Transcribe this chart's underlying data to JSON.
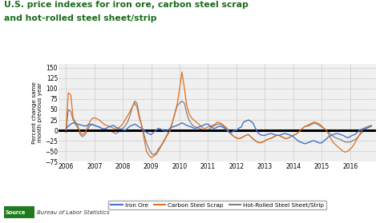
{
  "title_line1": "U.S. price indexes for iron ore, carbon steel scrap",
  "title_line2": "and hot-rolled steel sheet/strip",
  "title_color": "#1a6b1a",
  "ylabel": "Percent change same\nmonth previous year",
  "ylim": [
    -75,
    160
  ],
  "yticks": [
    -75,
    -50,
    -25,
    0,
    25,
    50,
    75,
    100,
    125,
    150
  ],
  "source_label": "Bureau of Labor Statistics",
  "background_color": "#f0f0f0",
  "grid_color": "#cccccc",
  "zero_line_color": "#000000",
  "legend_labels": [
    "Iron Ore",
    "Carbon Steel Scrap",
    "Hot-Rolled Steel Sheet/Strip"
  ],
  "line_colors": [
    "#4472c4",
    "#e07020",
    "#808080"
  ],
  "iron_ore": {
    "dates": [
      2006.0,
      2006.08,
      2006.17,
      2006.25,
      2006.33,
      2006.42,
      2006.5,
      2006.58,
      2006.67,
      2006.75,
      2006.83,
      2006.92,
      2007.0,
      2007.08,
      2007.17,
      2007.25,
      2007.33,
      2007.42,
      2007.5,
      2007.58,
      2007.67,
      2007.75,
      2007.83,
      2007.92,
      2008.0,
      2008.08,
      2008.17,
      2008.25,
      2008.33,
      2008.42,
      2008.5,
      2008.58,
      2008.67,
      2008.75,
      2008.83,
      2008.92,
      2009.0,
      2009.08,
      2009.17,
      2009.25,
      2009.33,
      2009.42,
      2009.5,
      2009.58,
      2009.67,
      2009.75,
      2009.83,
      2009.92,
      2010.0,
      2010.08,
      2010.17,
      2010.25,
      2010.33,
      2010.42,
      2010.5,
      2010.58,
      2010.67,
      2010.75,
      2010.83,
      2010.92,
      2011.0,
      2011.08,
      2011.17,
      2011.25,
      2011.33,
      2011.42,
      2011.5,
      2011.58,
      2011.67,
      2011.75,
      2011.83,
      2011.92,
      2012.0,
      2012.08,
      2012.17,
      2012.25,
      2012.33,
      2012.42,
      2012.5,
      2012.58,
      2012.67,
      2012.75,
      2012.83,
      2012.92,
      2013.0,
      2013.08,
      2013.17,
      2013.25,
      2013.33,
      2013.42,
      2013.5,
      2013.58,
      2013.67,
      2013.75,
      2013.83,
      2013.92,
      2014.0,
      2014.08,
      2014.17,
      2014.25,
      2014.33,
      2014.42,
      2014.5,
      2014.58,
      2014.67,
      2014.75,
      2014.83,
      2014.92,
      2015.0,
      2015.08,
      2015.17,
      2015.25,
      2015.33,
      2015.42,
      2015.5,
      2015.58,
      2015.67,
      2015.75,
      2015.83,
      2015.92,
      2016.0,
      2016.08,
      2016.17,
      2016.25,
      2016.33,
      2016.42,
      2016.5,
      2016.58,
      2016.67,
      2016.75
    ],
    "values": [
      5,
      10,
      15,
      18,
      17,
      15,
      13,
      12,
      10,
      12,
      15,
      14,
      12,
      10,
      8,
      5,
      3,
      5,
      8,
      10,
      12,
      8,
      5,
      3,
      2,
      0,
      5,
      10,
      12,
      15,
      12,
      8,
      5,
      0,
      -5,
      -8,
      -10,
      -5,
      0,
      5,
      3,
      0,
      -2,
      0,
      5,
      8,
      10,
      12,
      15,
      18,
      15,
      12,
      10,
      8,
      5,
      5,
      8,
      10,
      12,
      15,
      15,
      10,
      5,
      5,
      8,
      10,
      8,
      5,
      0,
      -5,
      -5,
      0,
      0,
      5,
      8,
      20,
      22,
      25,
      22,
      18,
      5,
      -5,
      -10,
      -12,
      -12,
      -10,
      -8,
      -8,
      -10,
      -12,
      -12,
      -10,
      -8,
      -8,
      -10,
      -12,
      -15,
      -20,
      -25,
      -28,
      -30,
      -32,
      -30,
      -28,
      -25,
      -25,
      -28,
      -30,
      -30,
      -25,
      -20,
      -15,
      -12,
      -10,
      -8,
      -8,
      -10,
      -12,
      -15,
      -18,
      -15,
      -12,
      -10,
      -5,
      0,
      3,
      5,
      5,
      8,
      10
    ]
  },
  "carbon_steel": {
    "dates": [
      2006.0,
      2006.08,
      2006.17,
      2006.25,
      2006.33,
      2006.42,
      2006.5,
      2006.58,
      2006.67,
      2006.75,
      2006.83,
      2006.92,
      2007.0,
      2007.08,
      2007.17,
      2007.25,
      2007.33,
      2007.42,
      2007.5,
      2007.58,
      2007.67,
      2007.75,
      2007.83,
      2007.92,
      2008.0,
      2008.08,
      2008.17,
      2008.25,
      2008.33,
      2008.42,
      2008.5,
      2008.58,
      2008.67,
      2008.75,
      2008.83,
      2008.92,
      2009.0,
      2009.08,
      2009.17,
      2009.25,
      2009.33,
      2009.42,
      2009.5,
      2009.58,
      2009.67,
      2009.75,
      2009.83,
      2009.92,
      2010.0,
      2010.08,
      2010.17,
      2010.25,
      2010.33,
      2010.42,
      2010.5,
      2010.58,
      2010.67,
      2010.75,
      2010.83,
      2010.92,
      2011.0,
      2011.08,
      2011.17,
      2011.25,
      2011.33,
      2011.42,
      2011.5,
      2011.58,
      2011.67,
      2011.75,
      2011.83,
      2011.92,
      2012.0,
      2012.08,
      2012.17,
      2012.25,
      2012.33,
      2012.42,
      2012.5,
      2012.58,
      2012.67,
      2012.75,
      2012.83,
      2012.92,
      2013.0,
      2013.08,
      2013.17,
      2013.25,
      2013.33,
      2013.42,
      2013.5,
      2013.58,
      2013.67,
      2013.75,
      2013.83,
      2013.92,
      2014.0,
      2014.08,
      2014.17,
      2014.25,
      2014.33,
      2014.42,
      2014.5,
      2014.58,
      2014.67,
      2014.75,
      2014.83,
      2014.92,
      2015.0,
      2015.08,
      2015.17,
      2015.25,
      2015.33,
      2015.42,
      2015.5,
      2015.58,
      2015.67,
      2015.75,
      2015.83,
      2015.92,
      2016.0,
      2016.08,
      2016.17,
      2016.25,
      2016.33,
      2016.42,
      2016.5,
      2016.58,
      2016.67,
      2016.75
    ],
    "values": [
      0,
      90,
      85,
      30,
      20,
      10,
      -5,
      -10,
      -5,
      5,
      20,
      28,
      30,
      28,
      25,
      20,
      15,
      12,
      10,
      8,
      5,
      3,
      5,
      10,
      15,
      25,
      35,
      45,
      55,
      65,
      55,
      30,
      10,
      -20,
      -50,
      -60,
      -65,
      -62,
      -58,
      -50,
      -40,
      -30,
      -20,
      -10,
      0,
      20,
      40,
      65,
      100,
      140,
      100,
      60,
      40,
      30,
      25,
      20,
      15,
      10,
      5,
      5,
      8,
      10,
      12,
      15,
      20,
      18,
      15,
      10,
      5,
      -5,
      -10,
      -15,
      -18,
      -20,
      -18,
      -15,
      -12,
      -10,
      -15,
      -20,
      -25,
      -28,
      -30,
      -28,
      -25,
      -22,
      -20,
      -18,
      -15,
      -12,
      -12,
      -15,
      -18,
      -20,
      -18,
      -15,
      -12,
      -10,
      -5,
      0,
      5,
      10,
      12,
      15,
      18,
      20,
      18,
      15,
      10,
      5,
      0,
      -10,
      -20,
      -30,
      -35,
      -40,
      -45,
      -50,
      -52,
      -50,
      -45,
      -40,
      -30,
      -20,
      -10,
      0,
      5,
      8,
      10,
      12
    ]
  },
  "hot_rolled": {
    "dates": [
      2006.0,
      2006.08,
      2006.17,
      2006.25,
      2006.33,
      2006.42,
      2006.5,
      2006.58,
      2006.67,
      2006.75,
      2006.83,
      2006.92,
      2007.0,
      2007.08,
      2007.17,
      2007.25,
      2007.33,
      2007.42,
      2007.5,
      2007.58,
      2007.67,
      2007.75,
      2007.83,
      2007.92,
      2008.0,
      2008.08,
      2008.17,
      2008.25,
      2008.33,
      2008.42,
      2008.5,
      2008.58,
      2008.67,
      2008.75,
      2008.83,
      2008.92,
      2009.0,
      2009.08,
      2009.17,
      2009.25,
      2009.33,
      2009.42,
      2009.5,
      2009.58,
      2009.67,
      2009.75,
      2009.83,
      2009.92,
      2010.0,
      2010.08,
      2010.17,
      2010.25,
      2010.33,
      2010.42,
      2010.5,
      2010.58,
      2010.67,
      2010.75,
      2010.83,
      2010.92,
      2011.0,
      2011.08,
      2011.17,
      2011.25,
      2011.33,
      2011.42,
      2011.5,
      2011.58,
      2011.67,
      2011.75,
      2011.83,
      2011.92,
      2012.0,
      2012.08,
      2012.17,
      2012.25,
      2012.33,
      2012.42,
      2012.5,
      2012.58,
      2012.67,
      2012.75,
      2012.83,
      2012.92,
      2013.0,
      2013.08,
      2013.17,
      2013.25,
      2013.33,
      2013.42,
      2013.5,
      2013.58,
      2013.67,
      2013.75,
      2013.83,
      2013.92,
      2014.0,
      2014.08,
      2014.17,
      2014.25,
      2014.33,
      2014.42,
      2014.5,
      2014.58,
      2014.67,
      2014.75,
      2014.83,
      2014.92,
      2015.0,
      2015.08,
      2015.17,
      2015.25,
      2015.33,
      2015.42,
      2015.5,
      2015.58,
      2015.67,
      2015.75,
      2015.83,
      2015.92,
      2016.0,
      2016.08,
      2016.17,
      2016.25,
      2016.33,
      2016.42,
      2016.5,
      2016.58,
      2016.67,
      2016.75
    ],
    "values": [
      -5,
      50,
      45,
      25,
      15,
      5,
      -10,
      -15,
      -10,
      0,
      10,
      15,
      12,
      10,
      8,
      5,
      3,
      2,
      0,
      -2,
      -5,
      -8,
      -5,
      0,
      5,
      10,
      20,
      35,
      55,
      70,
      65,
      35,
      10,
      -10,
      -30,
      -45,
      -55,
      -58,
      -55,
      -45,
      -38,
      -28,
      -18,
      -8,
      5,
      20,
      40,
      60,
      65,
      70,
      65,
      40,
      25,
      15,
      10,
      8,
      5,
      3,
      0,
      -2,
      0,
      5,
      10,
      12,
      15,
      15,
      12,
      8,
      3,
      -5,
      -10,
      -15,
      -18,
      -20,
      -18,
      -15,
      -12,
      -10,
      -15,
      -20,
      -25,
      -28,
      -30,
      -28,
      -25,
      -22,
      -20,
      -18,
      -15,
      -12,
      -12,
      -15,
      -18,
      -20,
      -18,
      -15,
      -12,
      -10,
      -5,
      0,
      5,
      10,
      10,
      12,
      15,
      18,
      15,
      12,
      8,
      5,
      0,
      -5,
      -10,
      -15,
      -18,
      -20,
      -22,
      -25,
      -28,
      -28,
      -28,
      -25,
      -22,
      -18,
      -12,
      -5,
      0,
      5,
      8,
      10
    ]
  },
  "xlim": [
    2005.75,
    2016.92
  ],
  "xtick_positions": [
    2006,
    2007,
    2008,
    2009,
    2010,
    2011,
    2012,
    2013,
    2014,
    2015,
    2016
  ],
  "xtick_labels": [
    "2006",
    "2007",
    "2008",
    "2009",
    "2010",
    "2011",
    "2012",
    "2013",
    "2014",
    "2015",
    "2016"
  ],
  "fig_width": 4.74,
  "fig_height": 2.79,
  "fig_dpi": 100,
  "source_box_color": "#1e7b1e",
  "source_text_color": "#333333"
}
